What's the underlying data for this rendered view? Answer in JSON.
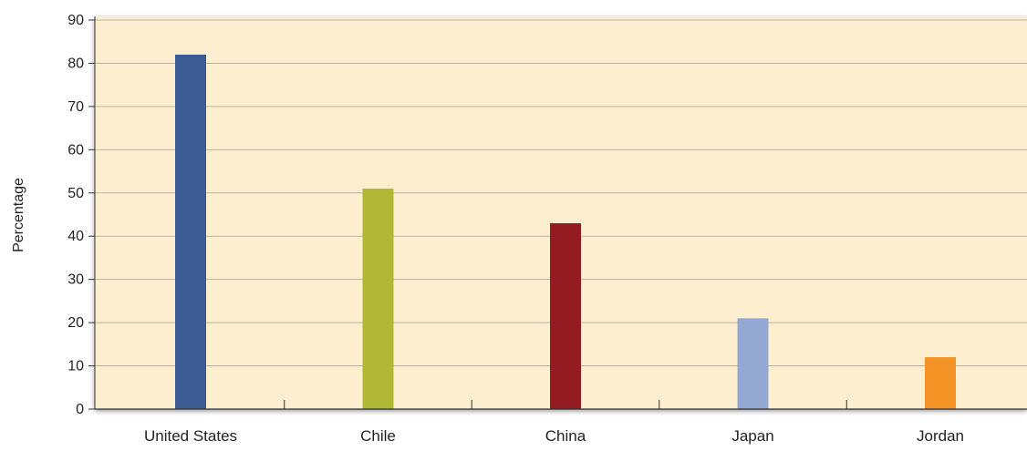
{
  "chart_data": {
    "type": "bar",
    "title": "",
    "xlabel": "",
    "ylabel": "Percentage",
    "ylim": [
      0,
      90
    ],
    "yticks": [
      0,
      10,
      20,
      30,
      40,
      50,
      60,
      70,
      80,
      90
    ],
    "categories": [
      "United States",
      "Chile",
      "China",
      "Japan",
      "Jordan"
    ],
    "values": [
      82,
      51,
      43,
      21,
      12
    ],
    "colors": [
      "#3c5b93",
      "#b0b835",
      "#951c22",
      "#93a8d2",
      "#f39325"
    ],
    "grid": true,
    "legend": "none",
    "plot_background": "#fdeed0",
    "gridline_color": "#b8b3a8"
  }
}
